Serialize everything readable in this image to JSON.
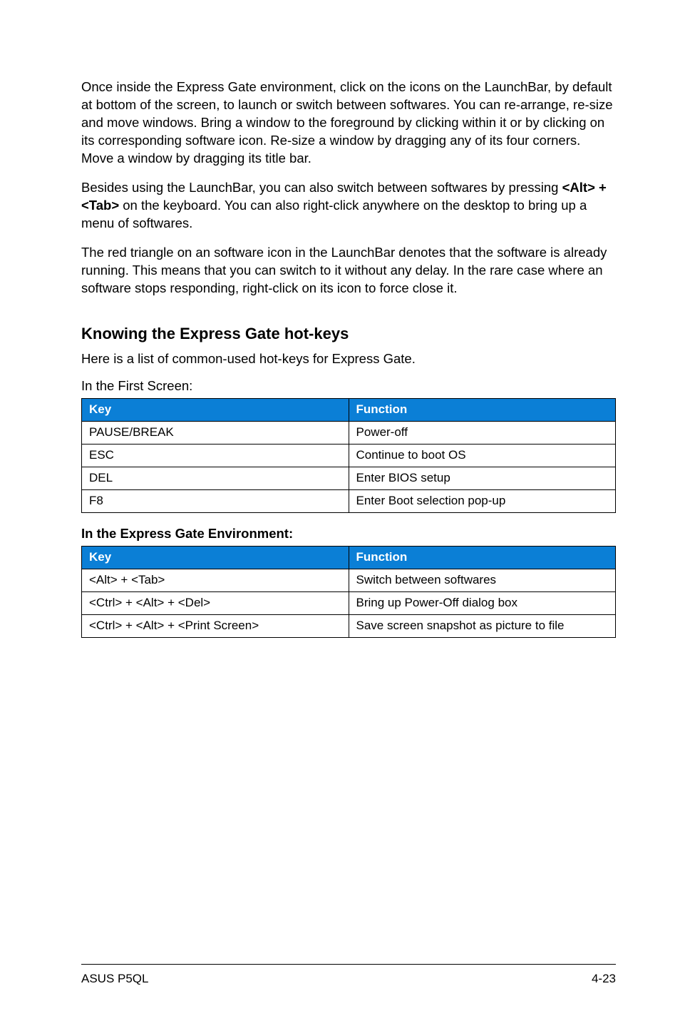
{
  "colors": {
    "table_header_bg": "#0b7fd6",
    "table_header_fg": "#ffffff",
    "table_border": "#000000",
    "page_bg": "#ffffff",
    "text": "#000000"
  },
  "paragraphs": {
    "p1": "Once inside the Express Gate environment, click on the icons on the LaunchBar, by default at bottom of the screen, to launch or switch between softwares. You can re-arrange, re-size and move windows. Bring a window to the foreground by clicking within it or by clicking on its corresponding software icon. Re-size a window by dragging any of its four corners. Move a window by dragging its title bar.",
    "p2_pre": "Besides using the LaunchBar, you can also switch between softwares by pressing ",
    "p2_bold": "<Alt> +<Tab>",
    "p2_post": " on the keyboard. You can also right-click anywhere on the desktop to bring up a menu of softwares.",
    "p3": "The red triangle on an software icon in the LaunchBar denotes that the software is already running. This means that you can switch to it without any delay. In the rare case where an software stops responding, right-click on its icon to force close it."
  },
  "section_heading": "Knowing the Express Gate hot-keys",
  "section_sub": "Here is a list of common-used hot-keys for Express Gate.",
  "table1": {
    "caption": "In the First Screen:",
    "header": {
      "key": "Key",
      "func": "Function"
    },
    "rows": [
      {
        "key": "PAUSE/BREAK",
        "func": "Power-off"
      },
      {
        "key": "ESC",
        "func": "Continue to boot OS"
      },
      {
        "key": "DEL",
        "func": "Enter BIOS setup"
      },
      {
        "key": "F8",
        "func": "Enter Boot selection pop-up"
      }
    ]
  },
  "table2": {
    "caption": "In the Express Gate Environment:",
    "header": {
      "key": "Key",
      "func": "Function"
    },
    "rows": [
      {
        "key": "<Alt> + <Tab>",
        "func": "Switch between softwares"
      },
      {
        "key": "<Ctrl> + <Alt> + <Del>",
        "func": "Bring up Power-Off dialog box"
      },
      {
        "key": "<Ctrl> + <Alt> + <Print Screen>",
        "func": "Save screen snapshot as picture to file"
      }
    ]
  },
  "footer": {
    "left": "ASUS P5QL",
    "right": "4-23"
  }
}
